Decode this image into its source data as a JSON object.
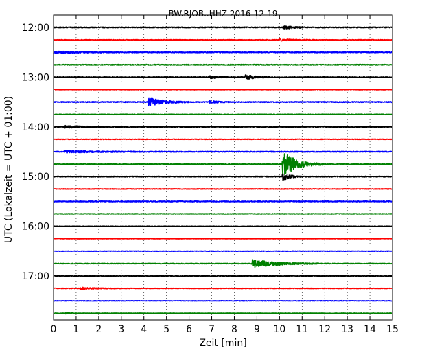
{
  "chart_data": {
    "type": "line",
    "title": "BW.RJOB..HHZ 2016-12-19",
    "xlabel": "Zeit  [min]",
    "ylabel": "UTC (Lokalzeit = UTC + 01:00)",
    "xlim": [
      0,
      15
    ],
    "x_ticks": [
      "0",
      "1",
      "2",
      "3",
      "4",
      "5",
      "6",
      "7",
      "8",
      "9",
      "10",
      "11",
      "12",
      "13",
      "14",
      "15"
    ],
    "y_ticks": [
      "12:00",
      "13:00",
      "14:00",
      "15:00",
      "16:00",
      "17:00"
    ],
    "grid": "dotted-vertical",
    "trace_colors": [
      "#000000",
      "#ff0000",
      "#0000ff",
      "#008000"
    ],
    "traces": [
      {
        "start": "12:00",
        "noise": 0.1,
        "events": [
          {
            "t": 10.2,
            "amp": 0.35,
            "dur": 0.4
          }
        ]
      },
      {
        "start": "12:15",
        "noise": 0.08,
        "events": [
          {
            "t": 10.0,
            "amp": 0.2,
            "dur": 0.5
          }
        ]
      },
      {
        "start": "12:30",
        "noise": 0.1,
        "events": [
          {
            "t": 0.0,
            "amp": 0.2,
            "dur": 1.0
          }
        ]
      },
      {
        "start": "12:45",
        "noise": 0.1,
        "events": []
      },
      {
        "start": "13:00",
        "noise": 0.1,
        "events": [
          {
            "t": 8.5,
            "amp": 0.5,
            "dur": 0.4
          },
          {
            "t": 6.9,
            "amp": 0.3,
            "dur": 0.3
          }
        ]
      },
      {
        "start": "13:15",
        "noise": 0.07,
        "events": []
      },
      {
        "start": "13:30",
        "noise": 0.1,
        "events": [
          {
            "t": 4.2,
            "amp": 0.9,
            "dur": 0.6
          },
          {
            "t": 6.9,
            "amp": 0.3,
            "dur": 0.3
          }
        ]
      },
      {
        "start": "13:45",
        "noise": 0.08,
        "events": []
      },
      {
        "start": "14:00",
        "noise": 0.1,
        "events": [
          {
            "t": 0.5,
            "amp": 0.2,
            "dur": 1.0
          }
        ]
      },
      {
        "start": "14:15",
        "noise": 0.07,
        "events": []
      },
      {
        "start": "14:30",
        "noise": 0.1,
        "events": [
          {
            "t": 0.5,
            "amp": 0.2,
            "dur": 1.5
          }
        ]
      },
      {
        "start": "14:45",
        "noise": 0.08,
        "events": [
          {
            "t": 10.15,
            "amp": 2.6,
            "dur": 0.6
          }
        ]
      },
      {
        "start": "15:00",
        "noise": 0.1,
        "events": [
          {
            "t": 10.15,
            "amp": 0.8,
            "dur": 0.3
          }
        ]
      },
      {
        "start": "15:15",
        "noise": 0.07,
        "events": []
      },
      {
        "start": "15:30",
        "noise": 0.1,
        "events": []
      },
      {
        "start": "15:45",
        "noise": 0.07,
        "events": []
      },
      {
        "start": "16:00",
        "noise": 0.06,
        "events": []
      },
      {
        "start": "16:15",
        "noise": 0.05,
        "events": []
      },
      {
        "start": "16:30",
        "noise": 0.06,
        "events": []
      },
      {
        "start": "16:45",
        "noise": 0.08,
        "events": [
          {
            "t": 8.8,
            "amp": 0.8,
            "dur": 1.0
          }
        ]
      },
      {
        "start": "17:00",
        "noise": 0.07,
        "events": [
          {
            "t": 11.0,
            "amp": 0.15,
            "dur": 0.3
          }
        ]
      },
      {
        "start": "17:15",
        "noise": 0.07,
        "events": [
          {
            "t": 1.2,
            "amp": 0.2,
            "dur": 0.6
          }
        ]
      },
      {
        "start": "17:30",
        "noise": 0.06,
        "events": []
      },
      {
        "start": "17:45",
        "noise": 0.06,
        "events": [
          {
            "t": 0.5,
            "amp": 0.15,
            "dur": 0.2
          }
        ]
      }
    ]
  }
}
